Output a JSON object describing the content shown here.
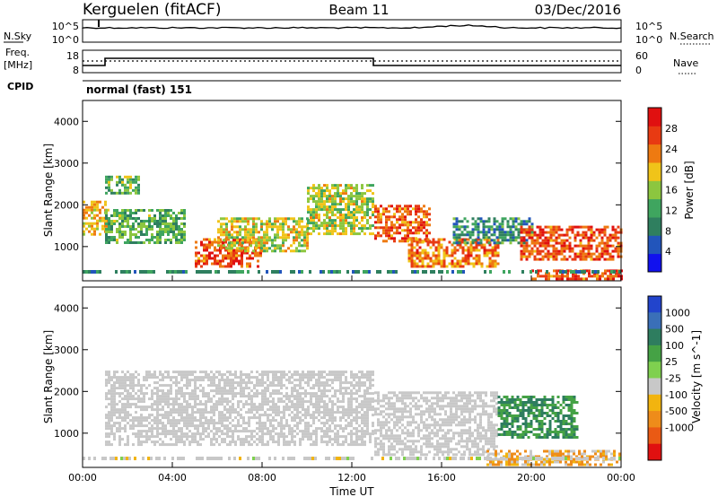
{
  "header": {
    "station": "Kerguelen (fitACF)",
    "beam": "Beam 11",
    "date": "03/Dec/2016"
  },
  "top_panel": {
    "left_label": "N.Sky",
    "right_label": "N.Search",
    "left_ticks": [
      "10^5",
      "10^0"
    ],
    "right_ticks": [
      "10^5",
      "10^0"
    ]
  },
  "freq_panel": {
    "left_label_1": "Freq.",
    "left_label_2": "[MHz]",
    "left_ticks": [
      "18",
      "8"
    ],
    "right_label": "Nave",
    "right_ticks": [
      "60",
      "0"
    ],
    "cpid_label": "CPID",
    "cpid_value": "normal (fast) 151"
  },
  "colors": {
    "power_scale": [
      "#1111ee",
      "#2255bb",
      "#2f7f5f",
      "#3fa55f",
      "#8cc63f",
      "#f0c419",
      "#ee7a11",
      "#e83a12",
      "#e01010"
    ],
    "velocity_scale": [
      "#2244cc",
      "#3a6fb8",
      "#2e7d5f",
      "#45a245",
      "#7fd04f",
      "#c8c8c8",
      "#f2b40f",
      "#ee8c1a",
      "#ea5a14",
      "#e01010"
    ]
  },
  "chart_data": [
    {
      "type": "heatmap",
      "name": "power",
      "ylabel": "Slant Range [km]",
      "xlim": [
        0,
        24
      ],
      "ylim": [
        180,
        4500
      ],
      "x_ticks": [
        "00:00",
        "04:00",
        "08:00",
        "12:00",
        "16:00",
        "20:00",
        "00:00"
      ],
      "y_ticks": [
        1000,
        2000,
        3000,
        4000
      ],
      "colorbar": {
        "label": "Power [dB]",
        "range": [
          0,
          32
        ],
        "ticks": [
          4,
          8,
          12,
          16,
          20,
          24,
          28
        ]
      },
      "echo_regions": [
        {
          "t_start": 0.0,
          "t_end": 1.2,
          "range_start": 1300,
          "range_end": 2100,
          "level": 20
        },
        {
          "t_start": 1.0,
          "t_end": 2.5,
          "range_start": 2300,
          "range_end": 2700,
          "level": 14
        },
        {
          "t_start": 1.0,
          "t_end": 4.5,
          "range_start": 1100,
          "range_end": 1900,
          "level": 13
        },
        {
          "t_start": 5.0,
          "t_end": 8.0,
          "range_start": 500,
          "range_end": 1200,
          "level": 26
        },
        {
          "t_start": 6.0,
          "t_end": 10.0,
          "range_start": 900,
          "range_end": 1700,
          "level": 18
        },
        {
          "t_start": 10.0,
          "t_end": 13.0,
          "range_start": 1300,
          "range_end": 2500,
          "level": 17
        },
        {
          "t_start": 13.0,
          "t_end": 15.5,
          "range_start": 1100,
          "range_end": 2000,
          "level": 25
        },
        {
          "t_start": 14.5,
          "t_end": 18.5,
          "range_start": 500,
          "range_end": 1200,
          "level": 24
        },
        {
          "t_start": 16.5,
          "t_end": 20.0,
          "range_start": 1100,
          "range_end": 1700,
          "level": 10
        },
        {
          "t_start": 19.5,
          "t_end": 24.0,
          "range_start": 700,
          "range_end": 1500,
          "level": 26
        },
        {
          "t_start": 20.0,
          "t_end": 24.0,
          "range_start": 250,
          "range_end": 450,
          "level": 26
        }
      ]
    },
    {
      "type": "heatmap",
      "name": "velocity",
      "ylabel": "Slant Range [km]",
      "xlabel": "Time UT",
      "xlim": [
        0,
        24
      ],
      "ylim": [
        180,
        4500
      ],
      "x_ticks": [
        "00:00",
        "04:00",
        "08:00",
        "12:00",
        "16:00",
        "20:00",
        "00:00"
      ],
      "y_ticks": [
        1000,
        2000,
        3000,
        4000
      ],
      "colorbar": {
        "label": "Velocity [m s^-1]",
        "ticks": [
          "1000",
          "500",
          "100",
          "25",
          "-25",
          "-100",
          "-500",
          "-1000"
        ]
      },
      "echo_regions": [
        {
          "t_start": 1.0,
          "t_end": 13.0,
          "range_start": 700,
          "range_end": 2500,
          "level": 0
        },
        {
          "t_start": 13.0,
          "t_end": 18.5,
          "range_start": 500,
          "range_end": 2000,
          "level": 0
        },
        {
          "t_start": 18.5,
          "t_end": 22.0,
          "range_start": 900,
          "range_end": 1900,
          "level": 150
        },
        {
          "t_start": 18.0,
          "t_end": 24.0,
          "range_start": 250,
          "range_end": 600,
          "level": -60
        }
      ]
    }
  ]
}
